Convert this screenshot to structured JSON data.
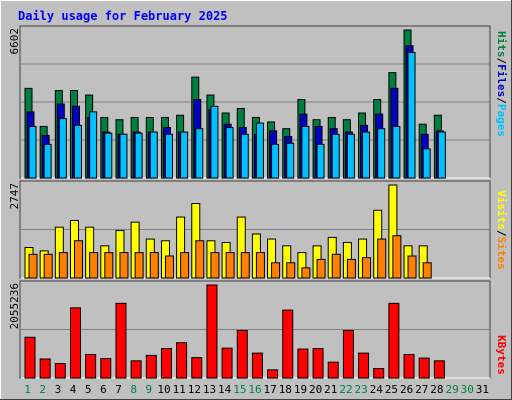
{
  "chart_data": [
    {
      "type": "bar",
      "title": "Daily usage for February 2025",
      "ylabel_max": "6602",
      "ylim": [
        0,
        6602
      ],
      "legend": [
        "Pages",
        "Files",
        "Hits"
      ],
      "categories": [
        "1",
        "2",
        "3",
        "4",
        "5",
        "6",
        "7",
        "8",
        "9",
        "10",
        "11",
        "12",
        "13",
        "14",
        "15",
        "16",
        "17",
        "18",
        "19",
        "20",
        "21",
        "22",
        "23",
        "24",
        "25",
        "26",
        "27",
        "28"
      ],
      "series": [
        {
          "name": "Hits",
          "color": "#008040",
          "values": [
            4000,
            2300,
            3900,
            3900,
            3700,
            2700,
            2600,
            2700,
            2700,
            2700,
            2800,
            4500,
            3700,
            2900,
            3100,
            2700,
            2500,
            2200,
            3500,
            2600,
            2700,
            2600,
            2900,
            3500,
            4700,
            6600,
            2400,
            2800
          ]
        },
        {
          "name": "Files",
          "color": "#0000c0",
          "values": [
            2950,
            1900,
            3300,
            3200,
            2700,
            2050,
            1950,
            2050,
            2050,
            2250,
            2050,
            3500,
            3050,
            2400,
            2250,
            1950,
            2100,
            1850,
            2850,
            2300,
            2200,
            2050,
            2350,
            2850,
            4000,
            5900,
            1950,
            2100
          ]
        },
        {
          "name": "Pages",
          "color": "#00c0ff",
          "values": [
            2300,
            1500,
            2650,
            2350,
            2950,
            2000,
            1950,
            2000,
            2050,
            1950,
            2050,
            2200,
            3200,
            2250,
            1950,
            2450,
            1500,
            1550,
            2300,
            1500,
            1950,
            1950,
            2050,
            2200,
            2300,
            5600,
            1300,
            2050
          ]
        }
      ]
    },
    {
      "type": "bar",
      "ylabel_max": "2747",
      "ylim": [
        0,
        2747
      ],
      "legend": [
        "Sites",
        "Visits"
      ],
      "categories": [
        "1",
        "2",
        "3",
        "4",
        "5",
        "6",
        "7",
        "8",
        "9",
        "10",
        "11",
        "12",
        "13",
        "14",
        "15",
        "16",
        "17",
        "18",
        "19",
        "20",
        "21",
        "22",
        "23",
        "24",
        "25",
        "26",
        "27",
        "28"
      ],
      "series": [
        {
          "name": "Visits",
          "color": "#ffff00",
          "values": [
            900,
            800,
            1500,
            1700,
            1500,
            950,
            1400,
            1650,
            1150,
            1100,
            1800,
            2200,
            1100,
            1050,
            1800,
            1300,
            1150,
            950,
            750,
            950,
            1200,
            1050,
            1150,
            2000,
            2747,
            950,
            950,
            0
          ]
        },
        {
          "name": "Sites",
          "color": "#ff8000",
          "values": [
            700,
            700,
            750,
            1100,
            750,
            750,
            750,
            750,
            750,
            650,
            750,
            1100,
            750,
            750,
            750,
            750,
            450,
            450,
            300,
            550,
            700,
            550,
            600,
            1150,
            1250,
            650,
            450,
            0
          ]
        }
      ]
    },
    {
      "type": "bar",
      "ylabel_max": "2055236",
      "ylim": [
        0,
        2055236
      ],
      "legend": [
        "KBytes"
      ],
      "categories": [
        "1",
        "2",
        "3",
        "4",
        "5",
        "6",
        "7",
        "8",
        "9",
        "10",
        "11",
        "12",
        "13",
        "14",
        "15",
        "16",
        "17",
        "18",
        "19",
        "20",
        "21",
        "22",
        "23",
        "24",
        "25",
        "26",
        "27",
        "28"
      ],
      "series": [
        {
          "name": "KBytes",
          "color": "#ff0000",
          "values": [
            900000,
            420000,
            320000,
            1550000,
            520000,
            430000,
            1650000,
            380000,
            500000,
            650000,
            780000,
            450000,
            2055236,
            660000,
            1050000,
            550000,
            180000,
            1500000,
            640000,
            650000,
            350000,
            1050000,
            550000,
            210000,
            1650000,
            520000,
            440000,
            380000
          ]
        }
      ]
    }
  ],
  "x_axis_labels": [
    "1",
    "2",
    "3",
    "4",
    "5",
    "6",
    "7",
    "8",
    "9",
    "10",
    "11",
    "12",
    "13",
    "14",
    "15",
    "16",
    "17",
    "18",
    "19",
    "20",
    "21",
    "22",
    "23",
    "24",
    "25",
    "26",
    "27",
    "28",
    "29",
    "30",
    "31"
  ],
  "weekend_days": [
    1,
    2,
    8,
    9,
    15,
    16,
    22,
    23,
    29,
    30
  ],
  "colors": {
    "background": "#c0c0c0",
    "plot_bg": "#c0c0c0",
    "grid": "#808080",
    "title": "#0000ff",
    "weekend_label": "#008040",
    "weekday_label": "#000000"
  }
}
